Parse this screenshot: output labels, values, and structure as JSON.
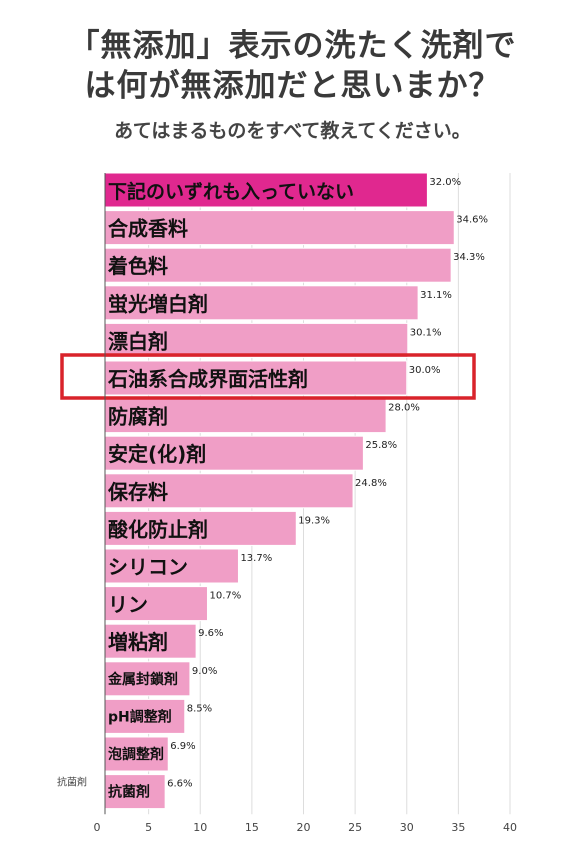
{
  "title_line1": "「無添加」表示の洗たく洗剤で",
  "title_line2": "は何が無添加だと思いまか？",
  "subtitle": "あてはまるものをすべて教えてください。",
  "colors": {
    "bar": "#f09ec6",
    "bar_highlight": "#e0288f",
    "bar_stroke": "#ffffff",
    "highlight_box": "#d9232b",
    "grid": "#dddddd",
    "axis": "#555555"
  },
  "chart_data": {
    "type": "bar",
    "orientation": "horizontal",
    "title": "",
    "xlabel": "",
    "ylabel": "",
    "xlim": [
      0,
      40
    ],
    "x_ticks": [
      0,
      5,
      10,
      15,
      20,
      25,
      30,
      35,
      40
    ],
    "grid": true,
    "highlighted_category": "石油系合成界面活性剤",
    "side_axis_label": "抗菌剤",
    "categories": [
      "下記のいずれも入っていない",
      "合成香料",
      "着色料",
      "蛍光増白剤",
      "漂白剤",
      "石油系合成界面活性剤",
      "防腐剤",
      "安定(化)剤",
      "保存料",
      "酸化防止剤",
      "シリコン",
      "リン",
      "増粘剤",
      "金属封鎖剤",
      "pH調整剤",
      "泡調整剤",
      "抗菌剤"
    ],
    "values": [
      32.0,
      34.6,
      34.3,
      31.1,
      30.1,
      30.0,
      28.0,
      25.8,
      24.8,
      19.3,
      13.7,
      10.7,
      9.6,
      9.0,
      8.5,
      6.9,
      6.6
    ],
    "value_labels": [
      "32.0%",
      "34.6%",
      "34.3%",
      "31.1%",
      "30.1%",
      "30.0%",
      "28.0%",
      "25.8%",
      "24.8%",
      "19.3%",
      "13.7%",
      "10.7%",
      "9.6%",
      "9.0%",
      "8.5%",
      "6.9%",
      "6.6%"
    ],
    "label_sizes": [
      "large",
      "large",
      "large",
      "large",
      "large",
      "large",
      "large",
      "large",
      "large",
      "large",
      "large",
      "large",
      "large",
      "small",
      "small",
      "small",
      "small"
    ]
  }
}
